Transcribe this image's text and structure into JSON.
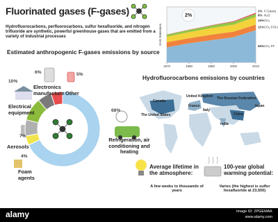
{
  "header": {
    "title": "Fluorinated gases (F-gases)",
    "description": "Hydrofluorocarbons, perfluorocarbons, sulfur hexafluoride, and nitrogen trifluoride are synthetic, powerful greenhouse gases that are emitted from a variety of industrial processes"
  },
  "emissions_chart": {
    "type": "area",
    "y_label": "GHG Emissions",
    "annotation": "2%",
    "x": [
      1970,
      1980,
      1990,
      2000,
      2010
    ],
    "xlim": [
      1970,
      2010
    ],
    "xticks": [
      1970,
      1980,
      1990,
      2000,
      2010
    ],
    "ylim": [
      0,
      55
    ],
    "series": [
      {
        "name": "CO₂ FF",
        "label": "65%",
        "color": "#8db9d9",
        "values": [
          15,
          19,
          22,
          25,
          32
        ]
      },
      {
        "name": "CO₂ FOLU",
        "label": "11%",
        "color": "#f0823e",
        "values": [
          5,
          5,
          5.5,
          5.5,
          5.4
        ]
      },
      {
        "name": "CH₄",
        "label": "16%",
        "color": "#f3d23b",
        "values": [
          5.5,
          6,
          6.5,
          7,
          7.8
        ]
      },
      {
        "name": "N₂O",
        "label": "6%",
        "color": "#92c746",
        "values": [
          2,
          2.2,
          2.5,
          2.8,
          3
        ]
      },
      {
        "name": "F-Gases",
        "label": "2%",
        "color": "#e84a6b",
        "values": [
          0.2,
          0.3,
          0.4,
          0.6,
          1
        ]
      }
    ]
  },
  "sources_chart": {
    "type": "donut",
    "title": "Estimated anthropogenic F-gases emissions by source",
    "categories": [
      "Refrigeration, air conditioning and heating",
      "Foam agents",
      "Aerosols",
      "Electrical equipment",
      "Electronics manufacture",
      "Other"
    ],
    "values": [
      68,
      4,
      7,
      10,
      6,
      5
    ],
    "value_labels": [
      "68%",
      "4%",
      "7%",
      "10%",
      "6%",
      "5%"
    ],
    "colors": [
      "#a9d3ee",
      "#f1e54c",
      "#b0b0b0",
      "#8cbb3c",
      "#7a7a7a",
      "#e84c4c"
    ]
  },
  "countries_map": {
    "title": "Hydrofluorocarbons emissions by countries",
    "countries": [
      "Canada",
      "The United States",
      "United Kingdom",
      "France",
      "Italy",
      "The Russian Federation",
      "China",
      "Japan",
      "India"
    ]
  },
  "facts": [
    {
      "title": "Average lifetime in the atmosphere:",
      "text": "A few weeks to thousands of years"
    },
    {
      "title": "100-year global warming potential:",
      "text": "Varies (the highest is sulfur hexafluoride at 23,500)"
    }
  ],
  "watermark": {
    "logo": "alamy",
    "image_id": "Image ID: 2PGEMAK",
    "url": "www.alamy.com"
  }
}
